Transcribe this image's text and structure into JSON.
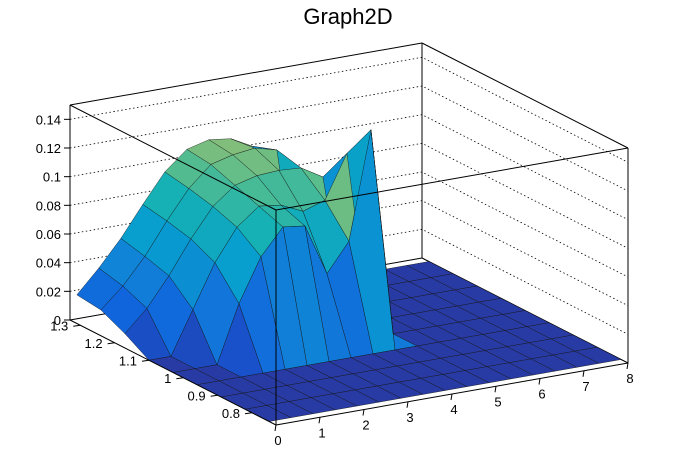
{
  "chart_data": {
    "type": "surface3d",
    "title": "Graph2D",
    "x_ticks": [
      "0",
      "1",
      "2",
      "3",
      "4",
      "5",
      "6",
      "7",
      "8"
    ],
    "y_ticks": [
      "0.8",
      "0.9",
      "1",
      "1.1",
      "1.2",
      "1.3"
    ],
    "z_ticks": [
      "0",
      "0.02",
      "0.04",
      "0.06",
      "0.08",
      "0.1",
      "0.12",
      "0.14"
    ],
    "xlim": [
      0,
      8
    ],
    "ylim": [
      0.73,
      1.33
    ],
    "zlim": [
      0,
      0.15
    ],
    "grid": true,
    "colormap": "parula",
    "x_grid": [
      0.0,
      0.5,
      1.0,
      1.5,
      2.0,
      2.5,
      3.0,
      3.5,
      4.0,
      4.5,
      5.0,
      5.5,
      6.0,
      6.5,
      7.0,
      7.5,
      8.0
    ],
    "y_grid": [
      0.75,
      0.82,
      0.89,
      0.96,
      1.03,
      1.1,
      1.17,
      1.24,
      1.31
    ],
    "z_rows": [
      [
        0.0,
        0.0,
        0.0,
        0.0,
        0.0,
        0.0,
        0.0,
        0.0,
        0.0,
        0.0,
        0.0,
        0.0,
        0.0,
        0.0,
        0.0,
        0.0,
        0.0
      ],
      [
        0.0,
        0.0,
        0.0,
        0.0,
        0.0,
        0.0,
        0.0,
        0.0,
        0.0,
        0.0,
        0.0,
        0.0,
        0.0,
        0.0,
        0.0,
        0.0,
        0.0
      ],
      [
        0.0,
        0.0,
        0.0,
        0.0,
        0.0,
        0.0,
        0.0,
        0.0,
        0.0,
        0.0,
        0.0,
        0.0,
        0.0,
        0.0,
        0.0,
        0.0,
        0.0
      ],
      [
        0.0,
        0.0,
        0.0,
        0.0,
        0.0,
        0.0,
        0.0,
        0.0,
        0.0,
        0.0,
        0.0,
        0.0,
        0.0,
        0.0,
        0.0,
        0.0,
        0.0
      ],
      [
        0.0,
        0.0,
        0.0,
        0.04,
        0.07,
        0.088,
        0.086,
        0.05,
        0.07,
        0.145,
        0.0,
        0.0,
        0.0,
        0.0,
        0.0,
        0.0,
        0.0
      ],
      [
        0.0,
        0.0,
        0.03,
        0.06,
        0.082,
        0.094,
        0.092,
        0.085,
        0.09,
        0.12,
        0.0,
        0.0,
        0.0,
        0.0,
        0.0,
        0.0,
        0.0
      ],
      [
        0.01,
        0.025,
        0.045,
        0.068,
        0.088,
        0.1,
        0.104,
        0.105,
        0.104,
        0.095,
        0.0,
        0.0,
        0.0,
        0.0,
        0.0,
        0.0,
        0.0
      ],
      [
        0.018,
        0.032,
        0.05,
        0.072,
        0.092,
        0.106,
        0.11,
        0.112,
        0.108,
        0.0,
        0.0,
        0.0,
        0.0,
        0.0,
        0.0,
        0.0,
        0.0
      ],
      [
        0.02,
        0.036,
        0.054,
        0.075,
        0.095,
        0.108,
        0.112,
        0.11,
        0.102,
        0.0,
        0.0,
        0.0,
        0.0,
        0.0,
        0.0,
        0.0,
        0.0
      ]
    ]
  }
}
